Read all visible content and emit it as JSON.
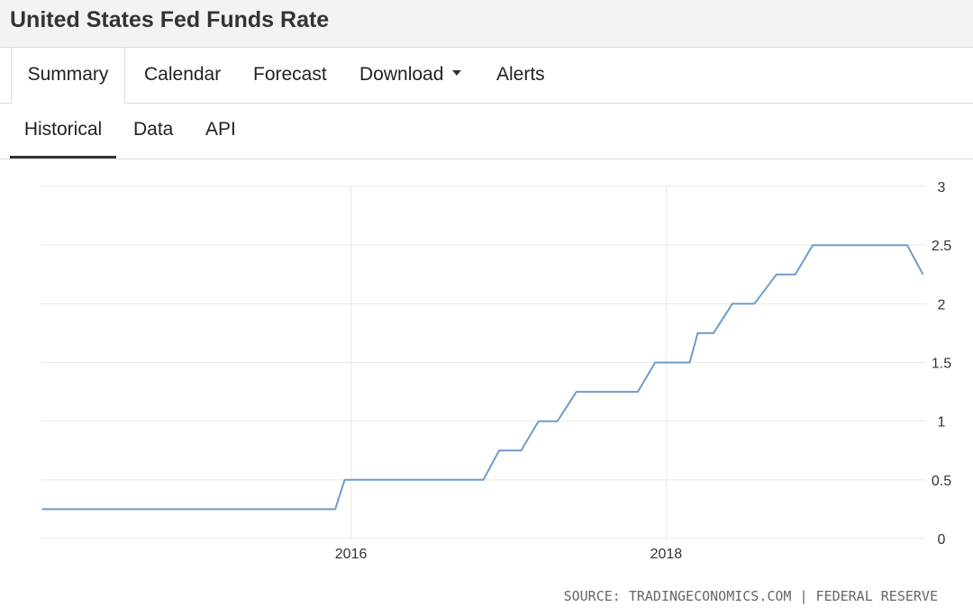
{
  "header": {
    "title": "United States Fed Funds Rate"
  },
  "tabs": [
    {
      "label": "Summary",
      "active": true
    },
    {
      "label": "Calendar"
    },
    {
      "label": "Forecast"
    },
    {
      "label": "Download",
      "dropdown": true
    },
    {
      "label": "Alerts"
    }
  ],
  "subtabs": [
    {
      "label": "Historical",
      "active": true
    },
    {
      "label": "Data"
    },
    {
      "label": "API"
    }
  ],
  "colors": {
    "line": "#6f9ccb",
    "grid": "#e9e9e9"
  },
  "chart_data": {
    "type": "line",
    "title": "",
    "xlabel": "",
    "ylabel": "",
    "ylim": [
      0,
      3
    ],
    "yticks": [
      "0",
      "0.5",
      "1",
      "1.5",
      "2",
      "2.5",
      "3"
    ],
    "xticks": [
      {
        "value": 2016.0,
        "label": "2016"
      },
      {
        "value": 2018.0,
        "label": "2018"
      }
    ],
    "xlim": [
      2014.03,
      2019.65
    ],
    "grid": true,
    "x": [
      2014.04,
      2015.9,
      2015.96,
      2016.84,
      2016.94,
      2017.08,
      2017.19,
      2017.31,
      2017.43,
      2017.82,
      2017.93,
      2018.15,
      2018.2,
      2018.3,
      2018.42,
      2018.56,
      2018.7,
      2018.82,
      2018.93,
      2019.43,
      2019.53,
      2019.63
    ],
    "y": [
      0.25,
      0.25,
      0.5,
      0.5,
      0.75,
      0.75,
      1.0,
      1.0,
      1.25,
      1.25,
      1.5,
      1.5,
      1.75,
      1.75,
      2.0,
      2.0,
      2.25,
      2.25,
      2.5,
      2.5,
      2.5,
      2.25
    ]
  },
  "footer": {
    "source": "SOURCE: TRADINGECONOMICS.COM | FEDERAL RESERVE"
  }
}
